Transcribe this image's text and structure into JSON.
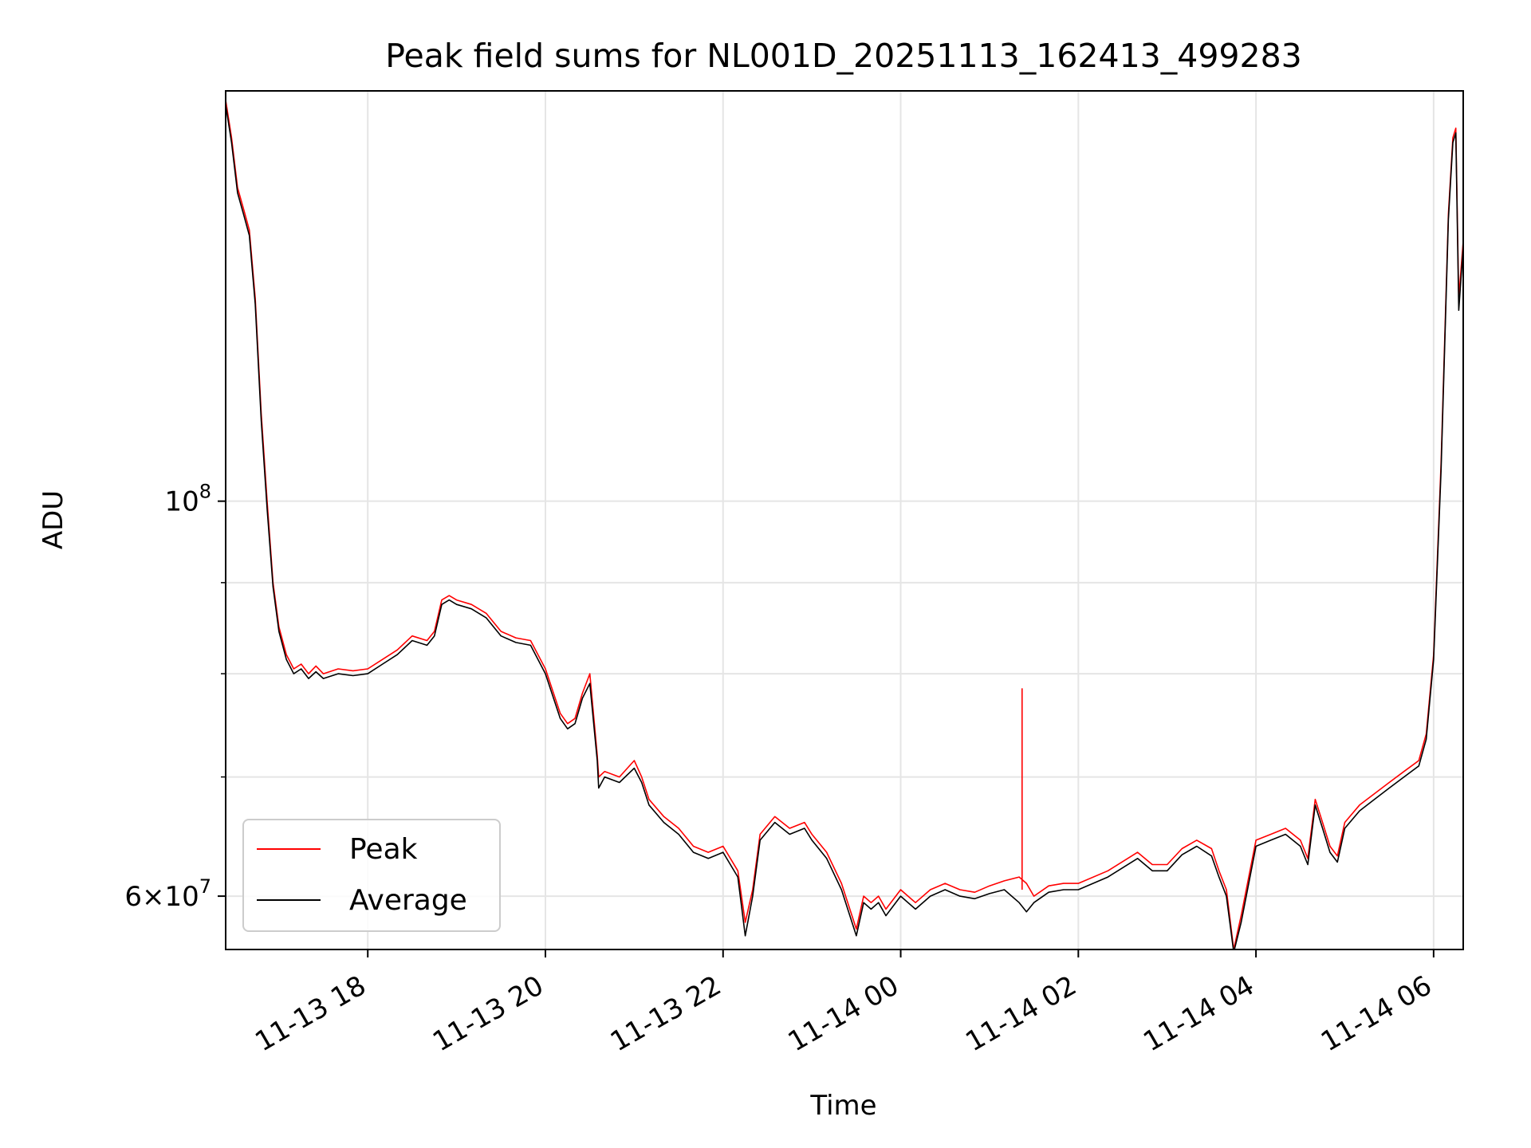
{
  "chart_data": {
    "type": "line",
    "title": "Peak field sums for NL001D_20251113_162413_499283",
    "xlabel": "Time",
    "ylabel": "ADU",
    "yscale": "log",
    "grid": true,
    "legend_position": "lower-left",
    "xlim": [
      "2025-11-13 16:24",
      "2025-11-14 06:20"
    ],
    "ylim": [
      56000000,
      170000000
    ],
    "x_ticks": [
      {
        "value": "2025-11-13 18:00",
        "label": "11-13 18"
      },
      {
        "value": "2025-11-13 20:00",
        "label": "11-13 20"
      },
      {
        "value": "2025-11-13 22:00",
        "label": "11-13 22"
      },
      {
        "value": "2025-11-14 00:00",
        "label": "11-14 00"
      },
      {
        "value": "2025-11-14 02:00",
        "label": "11-14 02"
      },
      {
        "value": "2025-11-14 04:00",
        "label": "11-14 04"
      },
      {
        "value": "2025-11-14 06:00",
        "label": "11-14 06"
      }
    ],
    "y_ticks": [
      {
        "value": 60000000,
        "label_mantissa": "6",
        "label_exponent": "7"
      },
      {
        "value": 100000000,
        "label_mantissa": "",
        "label_exponent": "8"
      }
    ],
    "y_minor_ticks": [
      70000000,
      80000000,
      90000000
    ],
    "x": [
      "2025-11-13 16:24",
      "2025-11-13 16:28",
      "2025-11-13 16:32",
      "2025-11-13 16:36",
      "2025-11-13 16:40",
      "2025-11-13 16:44",
      "2025-11-13 16:48",
      "2025-11-13 16:52",
      "2025-11-13 16:56",
      "2025-11-13 17:00",
      "2025-11-13 17:05",
      "2025-11-13 17:10",
      "2025-11-13 17:15",
      "2025-11-13 17:20",
      "2025-11-13 17:25",
      "2025-11-13 17:30",
      "2025-11-13 17:40",
      "2025-11-13 17:50",
      "2025-11-13 18:00",
      "2025-11-13 18:10",
      "2025-11-13 18:20",
      "2025-11-13 18:30",
      "2025-11-13 18:40",
      "2025-11-13 18:45",
      "2025-11-13 18:50",
      "2025-11-13 18:55",
      "2025-11-13 19:00",
      "2025-11-13 19:10",
      "2025-11-13 19:20",
      "2025-11-13 19:30",
      "2025-11-13 19:40",
      "2025-11-13 19:50",
      "2025-11-13 20:00",
      "2025-11-13 20:10",
      "2025-11-13 20:15",
      "2025-11-13 20:20",
      "2025-11-13 20:25",
      "2025-11-13 20:30",
      "2025-11-13 20:35",
      "2025-11-13 20:36",
      "2025-11-13 20:40",
      "2025-11-13 20:50",
      "2025-11-13 21:00",
      "2025-11-13 21:05",
      "2025-11-13 21:10",
      "2025-11-13 21:20",
      "2025-11-13 21:30",
      "2025-11-13 21:40",
      "2025-11-13 21:50",
      "2025-11-13 22:00",
      "2025-11-13 22:10",
      "2025-11-13 22:15",
      "2025-11-13 22:20",
      "2025-11-13 22:25",
      "2025-11-13 22:35",
      "2025-11-13 22:45",
      "2025-11-13 22:55",
      "2025-11-13 23:00",
      "2025-11-13 23:10",
      "2025-11-13 23:20",
      "2025-11-13 23:30",
      "2025-11-13 23:35",
      "2025-11-13 23:40",
      "2025-11-13 23:45",
      "2025-11-13 23:50",
      "2025-11-14 00:00",
      "2025-11-14 00:10",
      "2025-11-14 00:20",
      "2025-11-14 00:30",
      "2025-11-14 00:40",
      "2025-11-14 00:50",
      "2025-11-14 01:00",
      "2025-11-14 01:10",
      "2025-11-14 01:20",
      "2025-11-14 01:25",
      "2025-11-14 01:30",
      "2025-11-14 01:40",
      "2025-11-14 01:50",
      "2025-11-14 02:00",
      "2025-11-14 02:20",
      "2025-11-14 02:40",
      "2025-11-14 02:50",
      "2025-11-14 03:00",
      "2025-11-14 03:10",
      "2025-11-14 03:20",
      "2025-11-14 03:30",
      "2025-11-14 03:35",
      "2025-11-14 03:40",
      "2025-11-14 03:45",
      "2025-11-14 03:50",
      "2025-11-14 04:00",
      "2025-11-14 04:10",
      "2025-11-14 04:20",
      "2025-11-14 04:30",
      "2025-11-14 04:35",
      "2025-11-14 04:40",
      "2025-11-14 04:45",
      "2025-11-14 04:50",
      "2025-11-14 04:55",
      "2025-11-14 05:00",
      "2025-11-14 05:10",
      "2025-11-14 05:20",
      "2025-11-14 05:30",
      "2025-11-14 05:40",
      "2025-11-14 05:50",
      "2025-11-14 05:55",
      "2025-11-14 06:00",
      "2025-11-14 06:05",
      "2025-11-14 06:10",
      "2025-11-14 06:13",
      "2025-11-14 06:15",
      "2025-11-14 06:17",
      "2025-11-14 06:20"
    ],
    "series": [
      {
        "name": "Peak",
        "color": "#ff0000",
        "values": [
          168000000,
          160000000,
          150000000,
          146000000,
          142000000,
          130000000,
          112000000,
          100000000,
          90000000,
          85000000,
          82000000,
          80500000,
          81000000,
          80000000,
          80800000,
          80000000,
          80500000,
          80300000,
          80500000,
          81500000,
          82500000,
          84000000,
          83500000,
          84500000,
          88000000,
          88500000,
          88000000,
          87500000,
          86500000,
          84500000,
          83800000,
          83500000,
          80500000,
          76000000,
          75000000,
          75500000,
          78000000,
          80000000,
          72000000,
          70000000,
          70500000,
          70000000,
          71500000,
          70000000,
          68000000,
          66500000,
          65500000,
          64000000,
          63500000,
          64000000,
          62000000,
          58000000,
          60500000,
          65000000,
          66500000,
          65500000,
          66000000,
          65000000,
          63500000,
          61000000,
          57500000,
          60000000,
          59500000,
          60000000,
          59000000,
          60500000,
          59500000,
          60500000,
          61000000,
          60500000,
          60300000,
          60800000,
          61200000,
          61500000,
          61000000,
          60000000,
          60800000,
          61000000,
          61000000,
          62000000,
          63500000,
          62500000,
          62500000,
          63800000,
          64500000,
          63800000,
          62000000,
          60500000,
          56000000,
          58500000,
          64500000,
          65000000,
          65500000,
          64500000,
          63000000,
          68000000,
          66000000,
          64000000,
          63200000,
          66000000,
          67500000,
          68500000,
          69500000,
          70500000,
          71500000,
          74000000,
          82000000,
          105000000,
          145000000,
          160000000,
          162000000,
          130000000,
          140000000
        ]
      },
      {
        "name": "Average",
        "color": "#000000",
        "values": [
          167000000,
          159000000,
          149000000,
          145000000,
          141000000,
          129000000,
          111000000,
          99000000,
          89500000,
          84500000,
          81500000,
          80000000,
          80500000,
          79500000,
          80200000,
          79500000,
          80000000,
          79800000,
          80000000,
          81000000,
          82000000,
          83500000,
          83000000,
          84000000,
          87500000,
          88000000,
          87500000,
          87000000,
          86000000,
          84000000,
          83300000,
          83000000,
          80000000,
          75500000,
          74500000,
          75000000,
          77500000,
          79000000,
          71500000,
          69000000,
          70000000,
          69500000,
          70800000,
          69500000,
          67500000,
          66000000,
          65000000,
          63500000,
          63000000,
          63500000,
          61500000,
          57000000,
          60000000,
          64500000,
          66000000,
          65000000,
          65500000,
          64500000,
          63000000,
          60500000,
          57000000,
          59500000,
          59000000,
          59500000,
          58500000,
          60000000,
          59000000,
          60000000,
          60500000,
          60000000,
          59800000,
          60200000,
          60500000,
          59500000,
          58800000,
          59500000,
          60300000,
          60500000,
          60500000,
          61500000,
          63000000,
          62000000,
          62000000,
          63300000,
          64000000,
          63200000,
          61500000,
          60000000,
          55800000,
          58000000,
          64000000,
          64500000,
          65000000,
          64000000,
          62500000,
          67500000,
          65500000,
          63500000,
          62700000,
          65500000,
          67000000,
          68000000,
          69000000,
          70000000,
          71000000,
          73500000,
          81500000,
          104000000,
          144000000,
          159000000,
          161000000,
          128000000,
          139000000
        ]
      }
    ],
    "annotations": [
      {
        "series": "Peak",
        "x": "2025-11-14 01:22",
        "value": 78500000
      }
    ]
  }
}
